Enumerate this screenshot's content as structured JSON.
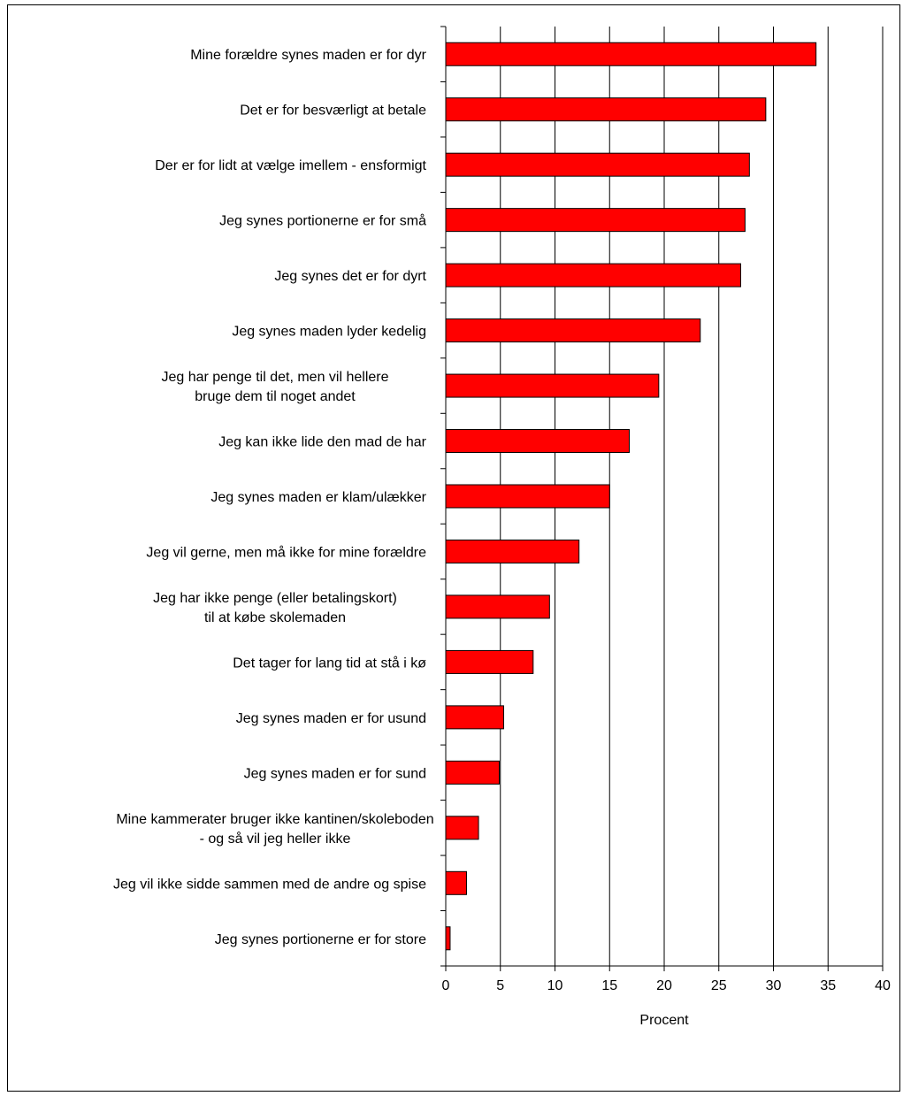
{
  "chart_data": {
    "type": "bar",
    "orientation": "horizontal",
    "title": "",
    "xlabel": "Procent",
    "ylabel": "",
    "xlim": [
      0,
      40
    ],
    "xticks": [
      0,
      5,
      10,
      15,
      20,
      25,
      30,
      35,
      40
    ],
    "grid": "vertical",
    "bar_color": "#ff0000",
    "categories": [
      "Mine forældre synes maden er for dyr",
      "Det er for besværligt at betale",
      "Der er for lidt at vælge imellem - ensformigt",
      "Jeg synes portionerne er for små",
      "Jeg synes det er for dyrt",
      "Jeg synes maden lyder kedelig",
      "Jeg har penge til det, men vil hellere\nbruge dem til noget andet",
      "Jeg kan ikke lide den mad de har",
      "Jeg synes maden er klam/ulækker",
      "Jeg vil gerne, men må ikke for mine forældre",
      "Jeg har ikke penge (eller betalingskort)\ntil at købe skolemaden",
      "Det tager for lang tid at stå i kø",
      "Jeg synes maden er for usund",
      "Jeg synes maden er for sund",
      "Mine kammerater bruger ikke kantinen/skoleboden\n- og så vil jeg heller ikke",
      "Jeg vil ikke sidde sammen med de andre og spise",
      "Jeg synes portionerne er for store"
    ],
    "values": [
      33.9,
      29.3,
      27.8,
      27.4,
      27.0,
      23.3,
      19.5,
      16.8,
      15.0,
      12.2,
      9.5,
      8.0,
      5.3,
      4.9,
      3.0,
      1.9,
      0.4
    ]
  }
}
